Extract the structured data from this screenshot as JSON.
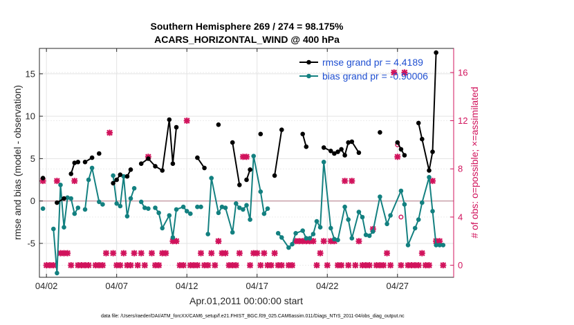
{
  "chart_data": {
    "type": "line",
    "title_line1": "Southern Hemisphere 269 / 274 = 98.175%",
    "title_line2": "ACARS_HORIZONTAL_WIND @ 400 hPa",
    "xlabel": "Apr.01,2011 00:00:00 start",
    "ylabel": "rmse and bias (model - observation)",
    "y2label": "# of obs: o=possible; ×=assimilated",
    "footnote": "data file: /Users/raeder/DAI/ATM_forcXX/CAM6_setup/f.e21.FHIST_BGC.f09_025.CAM6assim.011/Diags_NTrS_2011-04/obs_diag_output.nc",
    "xlim": [
      1.5,
      31.0
    ],
    "ylim": [
      -9,
      18
    ],
    "y2lim": [
      -1,
      18
    ],
    "x_ticks": [
      2,
      7,
      12,
      17,
      22,
      27
    ],
    "x_tick_labels": [
      "04/02",
      "04/07",
      "04/12",
      "04/17",
      "04/22",
      "04/27"
    ],
    "y_ticks": [
      -5,
      0,
      5,
      10,
      15
    ],
    "y2_ticks": [
      0,
      4,
      8,
      12,
      16
    ],
    "grid": true,
    "legend": "top-right",
    "colors": {
      "rmse": "#000000",
      "bias": "#138080",
      "obs": "#d1135c",
      "zero": "#c9a0a8"
    },
    "series": [
      {
        "name": "rmse grand pr = 4.4189",
        "points": [
          [
            1.75,
            2.7
          ],
          [
            2.25,
            null
          ],
          [
            2.5,
            null
          ],
          [
            2.75,
            -0.2
          ],
          [
            3.25,
            0.3
          ],
          [
            3.5,
            null
          ],
          [
            3.75,
            3.2
          ],
          [
            4.0,
            4.5
          ],
          [
            4.25,
            4.6
          ],
          [
            4.5,
            null
          ],
          [
            4.75,
            4.6
          ],
          [
            5.25,
            5.1
          ],
          [
            5.5,
            null
          ],
          [
            5.75,
            5.6
          ],
          [
            6.0,
            null
          ],
          [
            6.5,
            null
          ],
          [
            6.75,
            2.1
          ],
          [
            7.0,
            2.5
          ],
          [
            7.25,
            3.1
          ],
          [
            7.5,
            null
          ],
          [
            7.75,
            2.9
          ],
          [
            8.0,
            3.7
          ],
          [
            8.25,
            null
          ],
          [
            8.75,
            4.4
          ],
          [
            9.25,
            5.0
          ],
          [
            9.75,
            4.1
          ],
          [
            10.25,
            3.6
          ],
          [
            10.75,
            9.6
          ],
          [
            11.0,
            4.4
          ],
          [
            11.25,
            8.7
          ],
          [
            11.75,
            null
          ],
          [
            12.25,
            null
          ],
          [
            12.75,
            5.1
          ],
          [
            13.25,
            3.9
          ],
          [
            13.75,
            null
          ],
          [
            14.25,
            9.0
          ],
          [
            14.5,
            null
          ],
          [
            14.75,
            null
          ],
          [
            15.25,
            6.9
          ],
          [
            15.75,
            1.9
          ],
          [
            16.0,
            null
          ],
          [
            16.25,
            2.5
          ],
          [
            16.5,
            3.7
          ],
          [
            16.75,
            null
          ],
          [
            17.25,
            7.9
          ],
          [
            17.75,
            null
          ],
          [
            18.25,
            3.0
          ],
          [
            18.75,
            8.4
          ],
          [
            19.5,
            null
          ],
          [
            19.75,
            null
          ],
          [
            20.25,
            7.9
          ],
          [
            20.5,
            6.4
          ],
          [
            21.25,
            null
          ],
          [
            21.75,
            6.3
          ],
          [
            22.25,
            5.9
          ],
          [
            22.5,
            5.6
          ],
          [
            22.75,
            5.8
          ],
          [
            23.0,
            6.1
          ],
          [
            23.25,
            5.4
          ],
          [
            23.5,
            6.9
          ],
          [
            23.75,
            7.0
          ],
          [
            24.25,
            5.7
          ],
          [
            24.75,
            null
          ],
          [
            25.25,
            null
          ],
          [
            25.75,
            8.1
          ],
          [
            26.25,
            null
          ],
          [
            27.0,
            6.9
          ],
          [
            27.25,
            6.1
          ],
          [
            27.5,
            5.4
          ],
          [
            28.25,
            null
          ],
          [
            28.5,
            9.2
          ],
          [
            28.75,
            7.3
          ],
          [
            29.25,
            3.6
          ],
          [
            29.5,
            5.8
          ],
          [
            29.75,
            17.5
          ]
        ]
      },
      {
        "name": "bias grand pr = -0.90006",
        "points": [
          [
            1.75,
            -0.9
          ],
          [
            2.25,
            null
          ],
          [
            2.5,
            -3.3
          ],
          [
            2.75,
            -8.5
          ],
          [
            3.0,
            1.9
          ],
          [
            3.25,
            -3.1
          ],
          [
            3.5,
            0.4
          ],
          [
            3.75,
            0.3
          ],
          [
            4.0,
            -1.5
          ],
          [
            4.25,
            -0.8
          ],
          [
            4.5,
            null
          ],
          [
            4.75,
            -1.0
          ],
          [
            5.0,
            2.5
          ],
          [
            5.25,
            3.9
          ],
          [
            5.75,
            -0.1
          ],
          [
            6.0,
            -0.4
          ],
          [
            6.25,
            null
          ],
          [
            6.75,
            3.0
          ],
          [
            7.0,
            -0.3
          ],
          [
            7.25,
            -0.6
          ],
          [
            7.5,
            2.9
          ],
          [
            7.75,
            -1.8
          ],
          [
            8.0,
            0.3
          ],
          [
            8.25,
            1.5
          ],
          [
            8.5,
            null
          ],
          [
            8.75,
            -0.1
          ],
          [
            9.0,
            -0.8
          ],
          [
            9.25,
            -0.9
          ],
          [
            9.5,
            null
          ],
          [
            9.75,
            -0.8
          ],
          [
            10.0,
            -1.4
          ],
          [
            10.25,
            -3.2
          ],
          [
            10.75,
            -1.7
          ],
          [
            11.0,
            -4.3
          ],
          [
            11.25,
            -1.0
          ],
          [
            11.75,
            -0.7
          ],
          [
            12.0,
            -1.2
          ],
          [
            12.25,
            -1.5
          ],
          [
            12.5,
            null
          ],
          [
            12.75,
            -0.7
          ],
          [
            13.0,
            -0.7
          ],
          [
            13.25,
            null
          ],
          [
            13.5,
            -3.9
          ],
          [
            13.75,
            2.7
          ],
          [
            14.25,
            -1.4
          ],
          [
            14.5,
            -0.7
          ],
          [
            14.75,
            -0.8
          ],
          [
            15.25,
            -3.7
          ],
          [
            15.5,
            -0.3
          ],
          [
            15.75,
            -0.8
          ],
          [
            16.0,
            -1.0
          ],
          [
            16.25,
            -0.5
          ],
          [
            16.5,
            -2.2
          ],
          [
            16.75,
            5.3
          ],
          [
            17.25,
            1.1
          ],
          [
            17.5,
            -1.5
          ],
          [
            17.75,
            -0.9
          ],
          [
            18.25,
            null
          ],
          [
            18.5,
            -3.8
          ],
          [
            18.75,
            -4.3
          ],
          [
            19.25,
            -5.5
          ],
          [
            19.5,
            -5.1
          ],
          [
            19.75,
            -3.8
          ],
          [
            20.25,
            -3.5
          ],
          [
            20.5,
            -4.4
          ],
          [
            20.75,
            -4.4
          ],
          [
            21.0,
            -3.9
          ],
          [
            21.25,
            -2.4
          ],
          [
            21.5,
            -3.1
          ],
          [
            21.75,
            4.6
          ],
          [
            22.25,
            -3.2
          ],
          [
            22.5,
            -4.5
          ],
          [
            22.75,
            -4.6
          ],
          [
            23.25,
            -0.7
          ],
          [
            23.5,
            -2.2
          ],
          [
            23.75,
            -4.4
          ],
          [
            24.25,
            -1.3
          ],
          [
            24.5,
            -1.9
          ],
          [
            24.75,
            -4.0
          ],
          [
            25.0,
            -4.1
          ],
          [
            25.25,
            -3.6
          ],
          [
            25.75,
            0.5
          ],
          [
            26.25,
            -2.7
          ],
          [
            26.5,
            -1.7
          ],
          [
            27.25,
            1.2
          ],
          [
            27.5,
            -0.4
          ],
          [
            27.75,
            -5.2
          ],
          [
            28.25,
            -3.2
          ],
          [
            28.5,
            -2.2
          ],
          [
            28.75,
            -0.2
          ],
          [
            29.25,
            2.8
          ],
          [
            29.5,
            -1.2
          ],
          [
            29.75,
            -5.2
          ],
          [
            30.0,
            -5.2
          ],
          [
            30.25,
            -5.2
          ]
        ]
      },
      {
        "name": "obs assimilated (x)",
        "axis": "right",
        "points": [
          [
            1.75,
            7
          ],
          [
            2.0,
            0
          ],
          [
            2.25,
            0
          ],
          [
            2.5,
            0
          ],
          [
            2.75,
            7
          ],
          [
            3.0,
            1
          ],
          [
            3.25,
            1
          ],
          [
            3.5,
            1
          ],
          [
            3.75,
            0
          ],
          [
            4.0,
            7
          ],
          [
            4.25,
            0
          ],
          [
            4.5,
            0
          ],
          [
            4.75,
            0
          ],
          [
            5.0,
            0
          ],
          [
            5.5,
            0
          ],
          [
            5.75,
            0
          ],
          [
            6.0,
            0
          ],
          [
            6.25,
            1
          ],
          [
            6.5,
            11
          ],
          [
            6.75,
            1
          ],
          [
            7.0,
            0
          ],
          [
            7.25,
            0
          ],
          [
            7.5,
            1
          ],
          [
            7.75,
            0
          ],
          [
            8.0,
            0
          ],
          [
            8.25,
            1
          ],
          [
            8.5,
            0
          ],
          [
            8.75,
            1
          ],
          [
            9.0,
            0
          ],
          [
            9.25,
            9
          ],
          [
            9.5,
            1
          ],
          [
            9.75,
            0
          ],
          [
            10.0,
            0
          ],
          [
            10.25,
            1
          ],
          [
            10.5,
            1
          ],
          [
            11.0,
            2
          ],
          [
            11.25,
            2
          ],
          [
            11.5,
            0
          ],
          [
            11.75,
            0
          ],
          [
            12.0,
            12
          ],
          [
            12.25,
            0
          ],
          [
            12.5,
            0
          ],
          [
            12.75,
            0
          ],
          [
            13.0,
            1
          ],
          [
            13.25,
            0
          ],
          [
            13.5,
            0
          ],
          [
            13.75,
            1
          ],
          [
            14.0,
            0
          ],
          [
            14.25,
            2
          ],
          [
            14.5,
            1
          ],
          [
            14.75,
            1
          ],
          [
            15.0,
            0
          ],
          [
            15.25,
            0
          ],
          [
            15.5,
            0
          ],
          [
            15.75,
            1
          ],
          [
            16.0,
            9
          ],
          [
            16.25,
            9
          ],
          [
            16.5,
            0
          ],
          [
            16.75,
            1
          ],
          [
            17.0,
            1
          ],
          [
            17.25,
            0
          ],
          [
            17.5,
            1
          ],
          [
            17.75,
            0
          ],
          [
            18.0,
            0
          ],
          [
            18.25,
            1
          ],
          [
            18.5,
            0
          ],
          [
            18.75,
            0
          ],
          [
            19.25,
            0
          ],
          [
            19.5,
            0
          ],
          [
            19.75,
            2
          ],
          [
            20.0,
            2
          ],
          [
            20.25,
            2
          ],
          [
            20.5,
            2
          ],
          [
            20.75,
            2
          ],
          [
            21.0,
            2
          ],
          [
            21.25,
            0
          ],
          [
            21.5,
            1
          ],
          [
            21.75,
            2
          ],
          [
            22.0,
            0
          ],
          [
            22.25,
            2
          ],
          [
            22.5,
            2
          ],
          [
            22.75,
            0
          ],
          [
            23.0,
            0
          ],
          [
            23.25,
            7
          ],
          [
            23.5,
            0
          ],
          [
            23.75,
            7
          ],
          [
            24.0,
            0
          ],
          [
            24.25,
            2
          ],
          [
            24.5,
            0
          ],
          [
            24.75,
            0
          ],
          [
            25.0,
            0
          ],
          [
            25.25,
            3
          ],
          [
            25.5,
            0
          ],
          [
            25.75,
            0
          ],
          [
            26.0,
            0
          ],
          [
            26.25,
            1
          ],
          [
            26.5,
            0
          ],
          [
            26.75,
            16
          ],
          [
            27.0,
            9
          ],
          [
            27.25,
            0
          ],
          [
            27.5,
            16
          ],
          [
            27.75,
            0
          ],
          [
            28.0,
            0
          ],
          [
            28.25,
            0
          ],
          [
            28.5,
            0
          ],
          [
            28.75,
            1
          ],
          [
            29.0,
            0
          ],
          [
            29.25,
            0
          ],
          [
            29.5,
            7
          ],
          [
            29.75,
            2
          ],
          [
            30.0,
            2
          ],
          [
            30.25,
            0
          ]
        ]
      },
      {
        "name": "obs possible (o)",
        "axis": "right",
        "points": [
          [
            14.25,
            2
          ],
          [
            27.0,
            10
          ],
          [
            27.25,
            4
          ]
        ]
      }
    ]
  }
}
